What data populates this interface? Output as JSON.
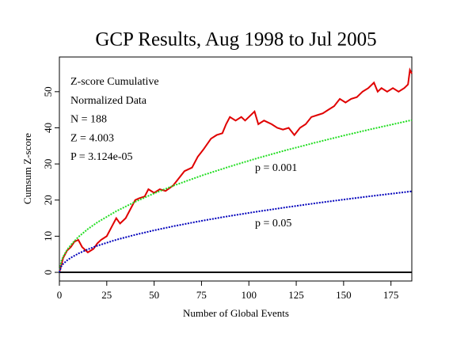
{
  "chart_data": {
    "type": "line",
    "title": "GCP Results, Aug 1998 to Jul 2005",
    "xlabel": "Number of Global Events",
    "ylabel": "Cumsum Z-score",
    "xlim": [
      0,
      186
    ],
    "ylim": [
      -2.4,
      59.6
    ],
    "xticks": [
      0,
      25,
      50,
      75,
      100,
      125,
      150,
      175
    ],
    "yticks": [
      0,
      10,
      20,
      30,
      40,
      50
    ],
    "reference_line": 0,
    "annotations": [
      "Z-score Cumulative",
      "Normalized Data",
      "N = 188",
      "Z = 4.003",
      "P = 3.124e-05"
    ],
    "series": [
      {
        "name": "Cumsum Z-score",
        "color": "#e00000",
        "style": "solid",
        "x": [
          0,
          2,
          4,
          6,
          8,
          10,
          12,
          15,
          18,
          20,
          22,
          25,
          28,
          30,
          32,
          35,
          38,
          40,
          42,
          45,
          47,
          50,
          53,
          56,
          60,
          63,
          66,
          70,
          73,
          76,
          80,
          83,
          86,
          88,
          90,
          93,
          96,
          98,
          100,
          103,
          105,
          108,
          112,
          115,
          118,
          121,
          124,
          127,
          130,
          133,
          136,
          139,
          142,
          145,
          148,
          151,
          154,
          157,
          160,
          163,
          166,
          168,
          170,
          173,
          176,
          179,
          182,
          184,
          185,
          186
        ],
        "values": [
          0,
          4,
          6,
          7,
          8.5,
          9,
          7,
          5.5,
          6.5,
          8,
          9,
          10,
          13,
          15,
          13.5,
          15,
          18,
          20,
          20.5,
          21,
          23,
          22,
          23,
          22.5,
          24,
          26,
          28,
          29,
          32,
          34,
          37,
          38,
          38.5,
          41,
          43,
          42,
          43,
          42,
          43,
          44.5,
          41,
          42,
          41,
          40,
          39.5,
          40,
          38,
          40,
          41,
          43,
          43.5,
          44,
          45,
          46,
          48,
          47,
          48,
          48.5,
          50,
          51,
          52.5,
          50,
          51,
          50,
          51,
          50,
          51,
          52,
          56,
          55
        ]
      },
      {
        "name": "p = 0.001",
        "color": "#22dd22",
        "style": "dotted",
        "x": [
          0,
          1,
          2,
          4,
          6,
          10,
          15,
          20,
          30,
          40,
          50,
          60,
          75,
          90,
          105,
          120,
          135,
          150,
          165,
          186
        ],
        "values": [
          0,
          3.09,
          4.37,
          6.18,
          7.57,
          9.77,
          11.97,
          13.82,
          16.92,
          19.54,
          21.85,
          23.94,
          26.76,
          29.31,
          31.66,
          33.85,
          35.9,
          37.84,
          39.69,
          42.14
        ]
      },
      {
        "name": "p = 0.05",
        "color": "#0000bb",
        "style": "dotted",
        "x": [
          0,
          1,
          2,
          4,
          6,
          10,
          15,
          20,
          30,
          40,
          50,
          60,
          75,
          90,
          105,
          120,
          135,
          150,
          165,
          186
        ],
        "values": [
          0,
          1.65,
          2.33,
          3.29,
          4.03,
          5.2,
          6.37,
          7.36,
          9.01,
          10.4,
          11.63,
          12.74,
          14.25,
          15.61,
          16.86,
          18.02,
          19.11,
          20.15,
          21.13,
          22.43
        ]
      }
    ]
  }
}
